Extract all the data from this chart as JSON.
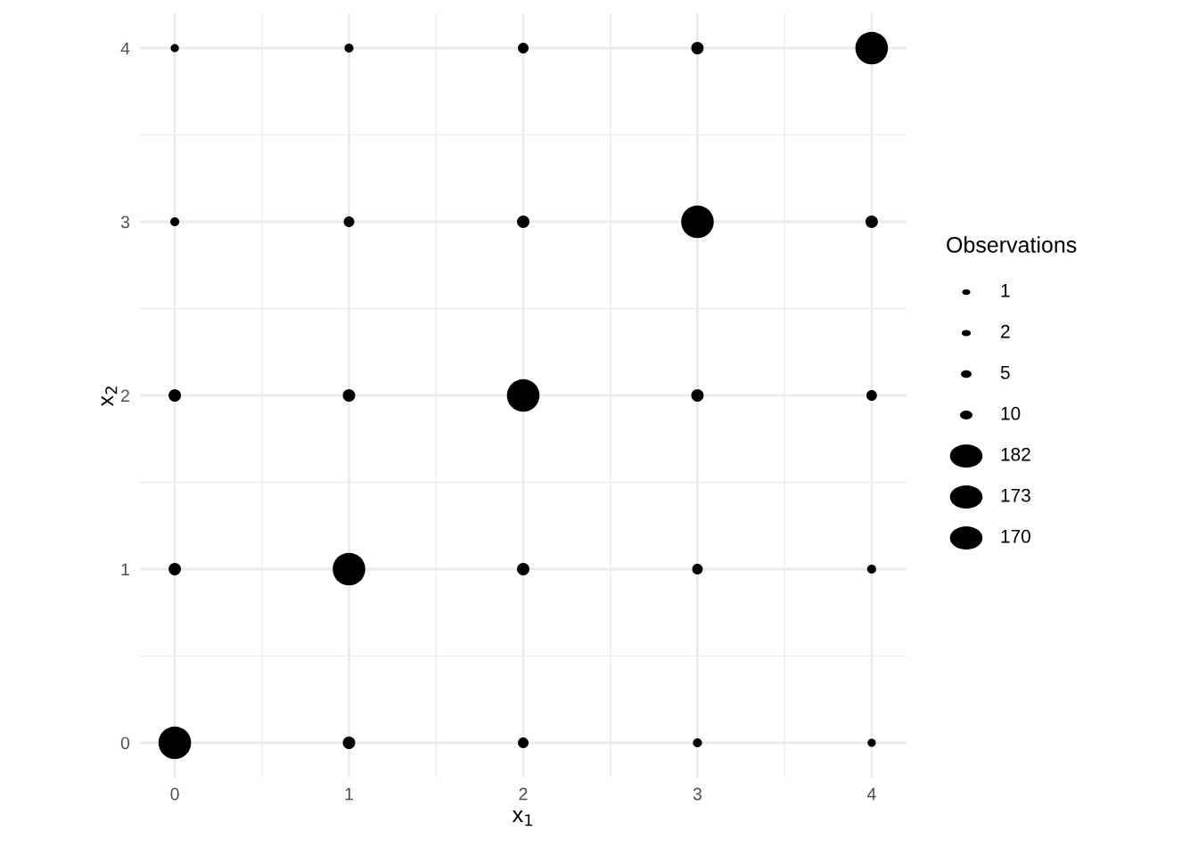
{
  "chart_data": {
    "type": "bubble",
    "xlabel": "x$_{1}$",
    "ylabel": "x$_{2}$",
    "legend_title": "Observations",
    "xlim": [
      -0.2,
      4.2
    ],
    "ylim": [
      -0.2,
      4.2
    ],
    "xticks": [
      0,
      {
        "value": 0.5,
        "label": null
      },
      1,
      {
        "value": 1.5,
        "label": null
      },
      2,
      {
        "value": 2.5,
        "label": null
      },
      3,
      {
        "value": 3.5,
        "label": null
      },
      4
    ],
    "yticks": [
      0,
      {
        "value": 0.5,
        "label": null
      },
      1,
      {
        "value": 1.5,
        "label": null
      },
      2,
      {
        "value": 2.5,
        "label": null
      },
      3,
      {
        "value": 3.5,
        "label": null
      },
      4
    ],
    "grid": true,
    "annotations": [
      "1",
      "2",
      "5",
      "10",
      "182",
      "173",
      "170"
    ],
    "series": [
      {
        "color": "#000000",
        "x": [
          0,
          1,
          2,
          3,
          4,
          0,
          1,
          2,
          3,
          4,
          0,
          1,
          2,
          3,
          4,
          0,
          1,
          2,
          3,
          4,
          0,
          1,
          2,
          3,
          4
        ],
        "values": [
          4,
          4,
          4,
          4,
          4,
          3,
          3,
          3,
          3,
          3,
          2,
          2,
          2,
          2,
          2,
          1,
          1,
          1,
          1,
          1,
          0,
          0,
          0,
          0,
          0
        ],
        "sizes": [
          0.063,
          0.076,
          0.106,
          0.145,
          1,
          0.076,
          0.106,
          0.145,
          1,
          0.145,
          0.145,
          0.145,
          1,
          0.145,
          0.106,
          0.145,
          1,
          0.145,
          0.106,
          0.076,
          1,
          0.145,
          0.106,
          0.076,
          0.063
        ]
      }
    ]
  }
}
